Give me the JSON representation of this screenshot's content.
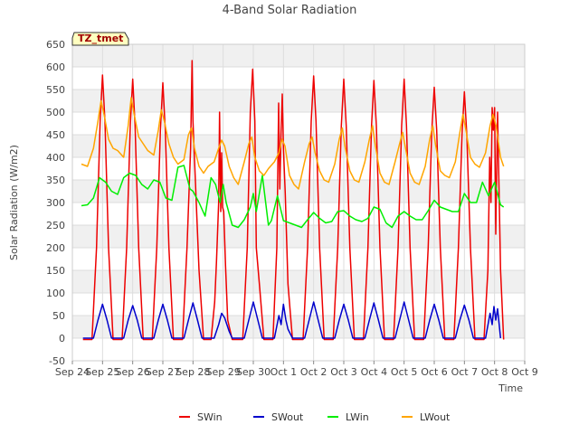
{
  "chart_data": {
    "type": "line",
    "title": "4-Band Solar Radiation",
    "site_label": "TZ_tmet",
    "xlabel": "Time",
    "ylabel": "Solar Radiation (W/m2)",
    "ylim": [
      -50,
      650
    ],
    "yticks": [
      -50,
      0,
      50,
      100,
      150,
      200,
      250,
      300,
      350,
      400,
      450,
      500,
      550,
      600,
      650
    ],
    "xlim": [
      0,
      15
    ],
    "xticks": [
      {
        "value": 0,
        "label": "Sep 24"
      },
      {
        "value": 1,
        "label": "Sep 25"
      },
      {
        "value": 2,
        "label": "Sep 26"
      },
      {
        "value": 3,
        "label": "Sep 27"
      },
      {
        "value": 4,
        "label": "Sep 28"
      },
      {
        "value": 5,
        "label": "Sep 29"
      },
      {
        "value": 6,
        "label": "Sep 30"
      },
      {
        "value": 7,
        "label": "Oct 1"
      },
      {
        "value": 8,
        "label": "Oct 2"
      },
      {
        "value": 9,
        "label": "Oct 3"
      },
      {
        "value": 10,
        "label": "Oct 4"
      },
      {
        "value": 11,
        "label": "Oct 5"
      },
      {
        "value": 12,
        "label": "Oct 6"
      },
      {
        "value": 13,
        "label": "Oct 7"
      },
      {
        "value": 14,
        "label": "Oct 8"
      },
      {
        "value": 15,
        "label": "Oct 9"
      }
    ],
    "grid": true,
    "legend_position": "bottom",
    "series": [
      {
        "name": "SWin",
        "color": "#ee0000",
        "x": [
          0.35,
          0.65,
          0.8,
          0.92,
          1.0,
          1.08,
          1.2,
          1.35,
          1.65,
          1.8,
          1.92,
          2.0,
          2.08,
          2.2,
          2.35,
          2.65,
          2.8,
          2.92,
          3.0,
          3.08,
          3.2,
          3.35,
          3.65,
          3.8,
          3.92,
          3.97,
          4.0,
          4.06,
          4.2,
          4.35,
          4.6,
          4.72,
          4.78,
          4.85,
          4.88,
          4.92,
          4.95,
          4.98,
          5.02,
          5.08,
          5.15,
          5.3,
          5.65,
          5.8,
          5.9,
          5.98,
          6.05,
          6.1,
          6.2,
          6.35,
          6.65,
          6.78,
          6.84,
          6.88,
          6.92,
          6.96,
          7.0,
          7.06,
          7.15,
          7.3,
          7.65,
          7.8,
          7.92,
          8.0,
          8.08,
          8.2,
          8.35,
          8.65,
          8.8,
          8.92,
          9.0,
          9.08,
          9.2,
          9.35,
          9.65,
          9.8,
          9.92,
          10.0,
          10.08,
          10.2,
          10.35,
          10.65,
          10.8,
          10.92,
          11.0,
          11.08,
          11.2,
          11.35,
          11.65,
          11.8,
          11.92,
          12.0,
          12.08,
          12.2,
          12.35,
          12.65,
          12.8,
          12.92,
          13.0,
          13.08,
          13.2,
          13.35,
          13.65,
          13.78,
          13.84,
          13.88,
          13.92,
          13.96,
          14.0,
          14.04,
          14.1,
          14.2,
          14.3
        ],
        "y": [
          -3,
          -3,
          200,
          480,
          582,
          480,
          200,
          -3,
          -3,
          200,
          470,
          573,
          470,
          200,
          -3,
          -3,
          200,
          460,
          565,
          460,
          200,
          -3,
          -3,
          200,
          420,
          614,
          480,
          380,
          150,
          -3,
          -3,
          80,
          170,
          300,
          500,
          280,
          410,
          290,
          280,
          160,
          40,
          -3,
          -3,
          200,
          500,
          595,
          480,
          200,
          120,
          -3,
          -3,
          200,
          520,
          330,
          455,
          540,
          420,
          320,
          120,
          -3,
          -3,
          200,
          480,
          580,
          480,
          200,
          -3,
          -3,
          200,
          470,
          573,
          470,
          200,
          -3,
          -3,
          200,
          470,
          570,
          470,
          200,
          -3,
          -3,
          200,
          470,
          573,
          470,
          200,
          -3,
          -3,
          200,
          460,
          555,
          460,
          200,
          -3,
          -3,
          200,
          450,
          545,
          450,
          200,
          -3,
          -3,
          150,
          400,
          300,
          510,
          460,
          510,
          230,
          500,
          150,
          -3
        ]
      },
      {
        "name": "SWout",
        "color": "#0000cc",
        "x": [
          0.35,
          0.7,
          0.85,
          1.0,
          1.15,
          1.3,
          1.7,
          1.85,
          2.0,
          2.15,
          2.3,
          2.7,
          2.85,
          3.0,
          3.15,
          3.3,
          3.7,
          3.85,
          4.0,
          4.15,
          4.3,
          4.7,
          4.85,
          4.95,
          5.05,
          5.2,
          5.3,
          5.7,
          5.85,
          6.0,
          6.15,
          6.3,
          6.7,
          6.85,
          6.92,
          7.0,
          7.08,
          7.15,
          7.3,
          7.7,
          7.85,
          8.0,
          8.15,
          8.3,
          8.7,
          8.85,
          9.0,
          9.15,
          9.3,
          9.7,
          9.85,
          10.0,
          10.15,
          10.3,
          10.7,
          10.85,
          11.0,
          11.15,
          11.3,
          11.7,
          11.85,
          12.0,
          12.15,
          12.3,
          12.7,
          12.85,
          13.0,
          13.15,
          13.3,
          13.7,
          13.85,
          13.92,
          13.98,
          14.04,
          14.1,
          14.2
        ],
        "y": [
          0,
          0,
          40,
          75,
          40,
          0,
          0,
          40,
          72,
          40,
          0,
          0,
          40,
          75,
          40,
          0,
          0,
          40,
          78,
          40,
          0,
          0,
          30,
          55,
          45,
          15,
          0,
          0,
          40,
          80,
          40,
          0,
          0,
          50,
          30,
          75,
          40,
          20,
          0,
          0,
          40,
          80,
          40,
          0,
          0,
          40,
          75,
          40,
          0,
          0,
          40,
          78,
          40,
          0,
          0,
          40,
          80,
          40,
          0,
          0,
          40,
          75,
          40,
          0,
          0,
          40,
          73,
          40,
          0,
          0,
          55,
          30,
          70,
          40,
          65,
          0
        ]
      },
      {
        "name": "LWin",
        "color": "#00ee00",
        "x": [
          0.3,
          0.5,
          0.7,
          0.9,
          1.1,
          1.3,
          1.5,
          1.7,
          1.9,
          2.1,
          2.3,
          2.5,
          2.7,
          2.9,
          3.1,
          3.3,
          3.5,
          3.7,
          3.9,
          4.0,
          4.2,
          4.4,
          4.6,
          4.75,
          4.9,
          5.0,
          5.1,
          5.3,
          5.5,
          5.7,
          5.9,
          6.0,
          6.1,
          6.3,
          6.5,
          6.6,
          6.8,
          7.0,
          7.2,
          7.4,
          7.6,
          7.8,
          8.0,
          8.2,
          8.4,
          8.6,
          8.8,
          9.0,
          9.2,
          9.4,
          9.6,
          9.8,
          10.0,
          10.2,
          10.4,
          10.6,
          10.8,
          11.0,
          11.2,
          11.4,
          11.6,
          11.8,
          12.0,
          12.2,
          12.4,
          12.6,
          12.8,
          13.0,
          13.2,
          13.4,
          13.6,
          13.8,
          14.0,
          14.2,
          14.3
        ],
        "y": [
          293,
          295,
          310,
          355,
          345,
          325,
          318,
          355,
          365,
          360,
          340,
          330,
          350,
          345,
          310,
          305,
          378,
          382,
          330,
          325,
          300,
          270,
          355,
          340,
          300,
          340,
          300,
          250,
          245,
          262,
          290,
          320,
          280,
          360,
          250,
          260,
          315,
          260,
          255,
          250,
          245,
          262,
          278,
          265,
          255,
          258,
          280,
          282,
          270,
          262,
          258,
          265,
          290,
          285,
          255,
          245,
          270,
          280,
          270,
          262,
          262,
          282,
          305,
          290,
          285,
          280,
          280,
          320,
          300,
          300,
          345,
          315,
          345,
          295,
          290
        ]
      },
      {
        "name": "LWout",
        "color": "#ffa500",
        "x": [
          0.3,
          0.5,
          0.7,
          0.85,
          0.95,
          1.05,
          1.2,
          1.35,
          1.5,
          1.7,
          1.85,
          1.95,
          2.05,
          2.2,
          2.35,
          2.5,
          2.7,
          2.85,
          2.95,
          3.05,
          3.2,
          3.35,
          3.5,
          3.7,
          3.85,
          3.95,
          4.05,
          4.2,
          4.35,
          4.5,
          4.7,
          4.85,
          4.95,
          5.05,
          5.2,
          5.35,
          5.5,
          5.7,
          5.85,
          5.95,
          6.05,
          6.2,
          6.35,
          6.5,
          6.7,
          6.85,
          6.95,
          7.05,
          7.2,
          7.35,
          7.5,
          7.7,
          7.85,
          7.95,
          8.05,
          8.2,
          8.35,
          8.5,
          8.7,
          8.85,
          8.95,
          9.05,
          9.2,
          9.35,
          9.5,
          9.7,
          9.85,
          9.95,
          10.05,
          10.2,
          10.35,
          10.5,
          10.7,
          10.85,
          10.95,
          11.05,
          11.2,
          11.35,
          11.5,
          11.7,
          11.85,
          11.95,
          12.05,
          12.2,
          12.35,
          12.5,
          12.7,
          12.85,
          12.95,
          13.05,
          13.2,
          13.35,
          13.5,
          13.7,
          13.85,
          13.95,
          14.05,
          14.2,
          14.3
        ],
        "y": [
          385,
          380,
          420,
          480,
          525,
          495,
          440,
          420,
          415,
          400,
          470,
          532,
          495,
          445,
          430,
          415,
          405,
          460,
          505,
          480,
          430,
          400,
          385,
          395,
          450,
          465,
          420,
          380,
          365,
          380,
          390,
          420,
          438,
          425,
          380,
          355,
          340,
          390,
          430,
          445,
          400,
          370,
          360,
          375,
          390,
          410,
          440,
          425,
          360,
          340,
          330,
          390,
          430,
          445,
          410,
          370,
          350,
          345,
          385,
          440,
          465,
          420,
          370,
          350,
          345,
          390,
          440,
          470,
          425,
          365,
          345,
          340,
          390,
          430,
          455,
          420,
          365,
          345,
          340,
          380,
          440,
          470,
          425,
          370,
          360,
          355,
          390,
          455,
          495,
          460,
          400,
          385,
          378,
          410,
          470,
          495,
          470,
          400,
          380
        ]
      }
    ]
  }
}
